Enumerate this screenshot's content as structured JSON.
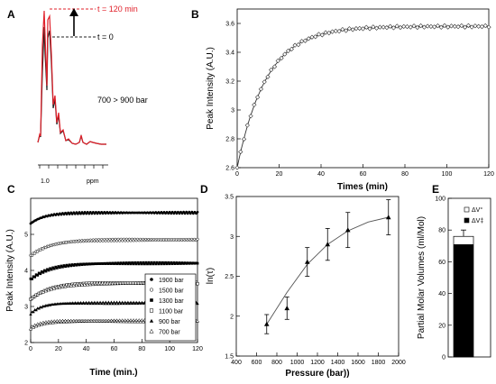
{
  "chart_data": [
    {
      "panel": "A",
      "type": "line",
      "series": [
        {
          "name": "t = 120 min",
          "color": "#e0202a"
        },
        {
          "name": "t = 0",
          "color": "#222222"
        }
      ],
      "annotation": "700 > 900 bar",
      "xlabel": "ppm",
      "xticks": [
        "1.0"
      ]
    },
    {
      "panel": "B",
      "type": "scatter",
      "xlabel": "Times (min)",
      "ylabel": "Peak Intensity (A.U.)",
      "xlim": [
        0,
        120
      ],
      "ylim": [
        2.6,
        3.7
      ],
      "xticks": [
        0,
        20,
        40,
        60,
        80,
        100,
        120
      ],
      "yticks": [
        2.6,
        2.8,
        3,
        3.2,
        3.4,
        3.6
      ],
      "fit": {
        "y0": 2.6,
        "amplitude": 0.98,
        "tau_min": 14
      },
      "points": {
        "x_start": 0,
        "x_end": 120,
        "count": 75
      }
    },
    {
      "panel": "C",
      "type": "scatter",
      "xlabel": "Time (min.)",
      "ylabel": "Peak Intensity (A.U.)",
      "xlim": [
        0,
        120
      ],
      "ylim": [
        2,
        6
      ],
      "xticks": [
        0,
        20,
        40,
        60,
        80,
        100,
        120
      ],
      "yticks": [
        2,
        3,
        4,
        5
      ],
      "series": [
        {
          "name": "1900 bar",
          "marker": "filled-circle",
          "start": 5.3,
          "end": 5.6,
          "tau": 10
        },
        {
          "name": "1500 bar",
          "marker": "open-circle",
          "start": 4.4,
          "end": 4.85,
          "tau": 14
        },
        {
          "name": "1300 bar",
          "marker": "filled-square",
          "start": 3.75,
          "end": 4.2,
          "tau": 14
        },
        {
          "name": "1100 bar",
          "marker": "open-square",
          "start": 3.2,
          "end": 3.65,
          "tau": 14
        },
        {
          "name": "900 bar",
          "marker": "filled-triangle",
          "start": 2.8,
          "end": 3.1,
          "tau": 8
        },
        {
          "name": "700 bar",
          "marker": "open-triangle",
          "start": 2.4,
          "end": 2.6,
          "tau": 8
        }
      ]
    },
    {
      "panel": "D",
      "type": "scatter",
      "xlabel": "Pressure (bar))",
      "ylabel": "ln(τ)",
      "xlim": [
        400,
        2000
      ],
      "ylim": [
        1.5,
        3.5
      ],
      "xticks": [
        400,
        600,
        800,
        1000,
        1200,
        1400,
        1600,
        1800,
        2000
      ],
      "yticks": [
        1.5,
        2,
        2.5,
        3,
        3.5
      ],
      "x": [
        700,
        900,
        1100,
        1300,
        1500,
        1900
      ],
      "y": [
        1.9,
        2.1,
        2.68,
        2.9,
        3.08,
        3.24
      ],
      "yerr": [
        0.12,
        0.14,
        0.18,
        0.2,
        0.22,
        0.22
      ],
      "fit_x": [
        700,
        900,
        1100,
        1300,
        1500,
        1700,
        1900
      ],
      "fit_y": [
        1.9,
        2.3,
        2.65,
        2.9,
        3.07,
        3.18,
        3.24
      ]
    },
    {
      "panel": "E",
      "type": "bar",
      "ylabel": "Partial Molar Volumes (ml/Mol)",
      "ylim": [
        0,
        100
      ],
      "yticks": [
        0,
        20,
        40,
        60,
        80,
        100
      ],
      "legend": [
        {
          "name": "ΔV°",
          "fill": "#ffffff"
        },
        {
          "name": "ΔV‡",
          "fill": "#000000"
        }
      ],
      "bars": [
        {
          "name": "ΔV‡",
          "value": 71
        },
        {
          "name": "ΔV°",
          "value": 76
        }
      ],
      "error": 4
    }
  ]
}
